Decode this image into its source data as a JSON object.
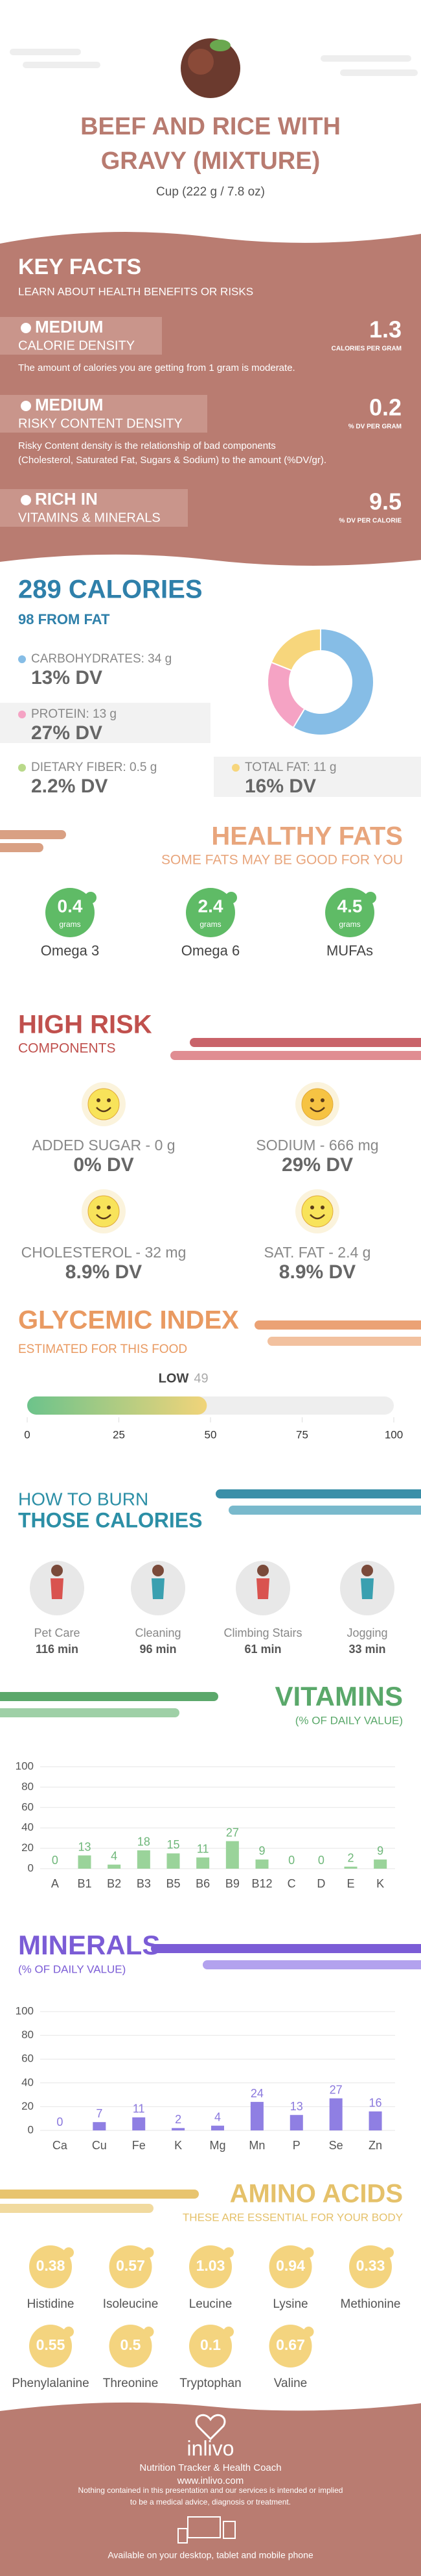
{
  "header": {
    "title_lines": [
      "BEEF AND RICE WITH",
      "GRAVY (MIXTURE)"
    ],
    "serving": "Cup (222 g / 7.8 oz)"
  },
  "key_facts": {
    "title": "KEY FACTS",
    "subtitle": "LEARN ABOUT HEALTH BENEFITS OR RISKS",
    "facts": [
      {
        "level": "MEDIUM",
        "name": "CALORIE DENSITY",
        "value": "1.3",
        "unit": "CALORIES PER GRAM",
        "description": [
          "The amount of calories you are getting from 1 gram is moderate."
        ]
      },
      {
        "level": "MEDIUM",
        "name": "RISKY CONTENT DENSITY",
        "value": "0.2",
        "unit": "% DV PER GRAM",
        "description": [
          "Risky Content density is the relationship of bad components",
          "(Cholesterol, Saturated Fat, Sugars & Sodium) to the amount (%DV/gr)."
        ]
      },
      {
        "level": "RICH  IN",
        "name": "VITAMINS & MINERALS",
        "value": "9.5",
        "unit": "% DV PER CALORIE",
        "description": []
      }
    ]
  },
  "calories": {
    "title": "289 CALORIES",
    "subtitle": "98 FROM FAT",
    "nutrients": [
      {
        "label": "CARBOHYDRATES: 34 g",
        "dv": "13% DV",
        "color": "#86bde6"
      },
      {
        "label": "PROTEIN: 13 g",
        "dv": "27% DV",
        "color": "#f5a3c4"
      },
      {
        "label": "DIETARY FIBER: 0.5 g",
        "dv": "2.2% DV",
        "color": "#b9d98a"
      },
      {
        "label": "TOTAL FAT: 11 g",
        "dv": "16% DV",
        "color": "#f7d67c"
      }
    ]
  },
  "healthy_fats": {
    "title": "HEALTHY FATS",
    "subtitle": "SOME FATS MAY BE GOOD FOR YOU",
    "items": [
      {
        "value": "0.4",
        "unit": "grams",
        "name": "Omega 3"
      },
      {
        "value": "2.4",
        "unit": "grams",
        "name": "Omega 6"
      },
      {
        "value": "4.5",
        "unit": "grams",
        "name": "MUFAs"
      }
    ]
  },
  "high_risk": {
    "title": "HIGH RISK",
    "subtitle": "COMPONENTS",
    "items": [
      {
        "label": "ADDED SUGAR - 0 g",
        "dv": "0% DV"
      },
      {
        "label": "SODIUM - 666 mg",
        "dv": "29% DV"
      },
      {
        "label": "CHOLESTEROL - 32 mg",
        "dv": "8.9% DV"
      },
      {
        "label": "SAT. FAT - 2.4 g",
        "dv": "8.9% DV"
      }
    ]
  },
  "burn": {
    "title_lines": [
      "HOW TO BURN",
      "THOSE CALORIES"
    ],
    "activities": [
      {
        "name": "Pet Care",
        "time": "116 min"
      },
      {
        "name": "Cleaning",
        "time": "96 min"
      },
      {
        "name": "Climbing Stairs",
        "time": "61 min"
      },
      {
        "name": "Jogging",
        "time": "33 min"
      }
    ]
  },
  "amino_acids": {
    "title": "AMINO ACIDS",
    "subtitle": "THESE ARE ESSENTIAL FOR YOUR BODY",
    "items": [
      {
        "value": "0.38",
        "name": "Histidine"
      },
      {
        "value": "0.57",
        "name": "Isoleucine"
      },
      {
        "value": "1.03",
        "name": "Leucine"
      },
      {
        "value": "0.94",
        "name": "Lysine"
      },
      {
        "value": "0.33",
        "name": "Methionine"
      },
      {
        "value": "0.55",
        "name": "Phenylalanine"
      },
      {
        "value": "0.5",
        "name": "Threonine"
      },
      {
        "value": "0.1",
        "name": "Tryptophan"
      },
      {
        "value": "0.67",
        "name": "Valine"
      }
    ]
  },
  "footer": {
    "brand": "inlivo",
    "tagline": "Nutrition Tracker & Health Coach",
    "url": "www.inlivo.com",
    "disclaimer": [
      "Nothing contained in this presentation and our services is intended or implied",
      "to be a medical advice, diagnosis or treatment."
    ],
    "availability": "Available on your desktop, tablet and mobile phone"
  },
  "chart_data": [
    {
      "type": "pie",
      "values": [
        34,
        13,
        11
      ],
      "colors": [
        "#86bde6",
        "#f5a3c4",
        "#f7d67c"
      ]
    },
    {
      "type": "gauge",
      "title": "GLYCEMIC INDEX",
      "subtitle": "ESTIMATED FOR THIS FOOD",
      "label": "LOW",
      "values": [
        49
      ],
      "xlim": [
        0,
        100
      ],
      "xticks": [
        0,
        25,
        50,
        75,
        100
      ],
      "colors": [
        "#6cc38b",
        "#f1d47a"
      ]
    },
    {
      "type": "bar",
      "title": "VITAMINS",
      "subtitle": "(% OF DAILY VALUE)",
      "categories": [
        "A",
        "B1",
        "B2",
        "B3",
        "B5",
        "B6",
        "B9",
        "B12",
        "C",
        "D",
        "E",
        "K"
      ],
      "values": [
        0,
        13,
        4,
        18,
        15,
        11,
        27,
        9,
        0,
        0,
        2,
        9
      ],
      "ylim": [
        0,
        100
      ],
      "yticks": [
        0,
        20,
        40,
        60,
        80,
        100
      ],
      "color": "#9ad39a",
      "label_color": "#6fb77a",
      "grid": true
    },
    {
      "type": "bar",
      "title": "MINERALS",
      "subtitle": "(% OF DAILY VALUE)",
      "categories": [
        "Ca",
        "Cu",
        "Fe",
        "K",
        "Mg",
        "Mn",
        "P",
        "Se",
        "Zn"
      ],
      "values": [
        0,
        7,
        11,
        2,
        4,
        24,
        13,
        27,
        16
      ],
      "ylim": [
        0,
        100
      ],
      "yticks": [
        0,
        20,
        40,
        60,
        80,
        100
      ],
      "color": "#8f7fe3",
      "label_color": "#8a78dd",
      "grid": true
    }
  ]
}
